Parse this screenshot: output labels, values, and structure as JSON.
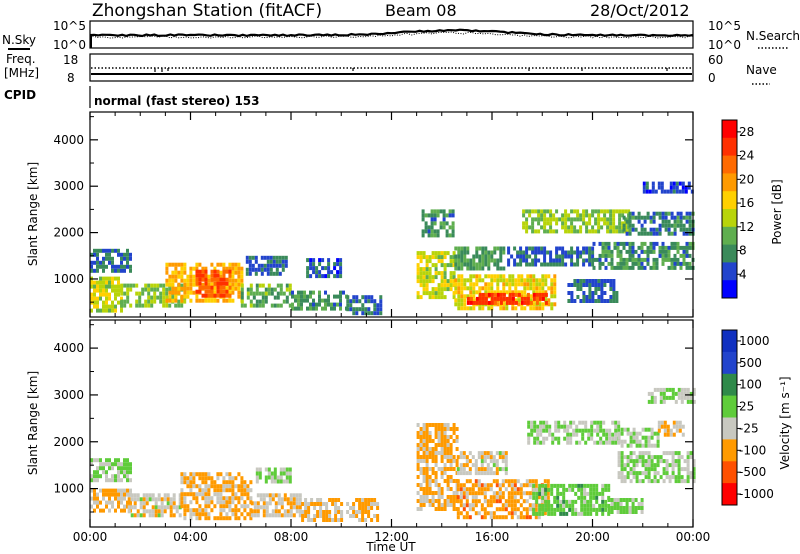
{
  "header": {
    "station": "Zhongshan Station (fitACF)",
    "beam": "Beam 08",
    "date": "28/Oct/2012"
  },
  "top_panels": {
    "nsky_label": "N.Sky",
    "nsky_ticks": [
      "10^5",
      "10^0"
    ],
    "nsearch_label": "N.Search",
    "nsearch_ticks": [
      "10^5",
      "10^0"
    ],
    "freq_label_1": "Freq.",
    "freq_label_2": "[MHz]",
    "freq_ticks": [
      "18",
      "8"
    ],
    "nave_label": "Nave",
    "nave_ticks": [
      "60",
      "0"
    ],
    "cpid_label": "CPID",
    "cpid_text": "normal (fast stereo) 153"
  },
  "chart_data": [
    {
      "type": "heatmap",
      "title": "",
      "xlabel": "",
      "ylabel": "Slant Range [km]",
      "xlim": [
        0,
        24
      ],
      "ylim": [
        180,
        4600
      ],
      "yticks": [
        "1000",
        "2000",
        "3000",
        "4000"
      ],
      "colorbar": {
        "label": "Power [dB]",
        "ticks": [
          "4",
          "8",
          "12",
          "16",
          "20",
          "24",
          "28"
        ],
        "range": [
          0,
          30
        ],
        "colors": [
          "#0000ff",
          "#2244cc",
          "#3a8a5a",
          "#5fae4f",
          "#b8d40a",
          "#ffd000",
          "#ff9a00",
          "#ff6a00",
          "#ff3000",
          "#ff0000"
        ]
      },
      "regions": [
        {
          "t0": 0.0,
          "t1": 1.2,
          "r0": 350,
          "r1": 1050,
          "v": 14
        },
        {
          "t0": 0.0,
          "t1": 1.6,
          "r0": 1150,
          "r1": 1650,
          "v": 6
        },
        {
          "t0": 1.2,
          "t1": 3.8,
          "r0": 400,
          "r1": 900,
          "v": 12
        },
        {
          "t0": 3.0,
          "t1": 6.0,
          "r0": 500,
          "r1": 1350,
          "v": 18
        },
        {
          "t0": 4.2,
          "t1": 5.6,
          "r0": 600,
          "r1": 1200,
          "v": 24
        },
        {
          "t0": 6.0,
          "t1": 8.0,
          "r0": 400,
          "r1": 900,
          "v": 10
        },
        {
          "t0": 6.2,
          "t1": 7.8,
          "r0": 1150,
          "r1": 1500,
          "v": 6
        },
        {
          "t0": 8.0,
          "t1": 10.2,
          "r0": 350,
          "r1": 750,
          "v": 8
        },
        {
          "t0": 8.6,
          "t1": 10.0,
          "r0": 1100,
          "r1": 1450,
          "v": 5
        },
        {
          "t0": 10.2,
          "t1": 11.6,
          "r0": 300,
          "r1": 650,
          "v": 6
        },
        {
          "t0": 13.0,
          "t1": 14.5,
          "r0": 600,
          "r1": 1600,
          "v": 14
        },
        {
          "t0": 13.2,
          "t1": 14.4,
          "r0": 1900,
          "r1": 2500,
          "v": 8
        },
        {
          "t0": 14.5,
          "t1": 18.5,
          "r0": 400,
          "r1": 1100,
          "v": 16
        },
        {
          "t0": 15.0,
          "t1": 18.2,
          "r0": 450,
          "r1": 700,
          "v": 26
        },
        {
          "t0": 14.5,
          "t1": 16.5,
          "r0": 1200,
          "r1": 1700,
          "v": 9
        },
        {
          "t0": 16.6,
          "t1": 20.0,
          "r0": 1300,
          "r1": 1700,
          "v": 6
        },
        {
          "t0": 17.2,
          "t1": 21.4,
          "r0": 2000,
          "r1": 2500,
          "v": 12
        },
        {
          "t0": 19.0,
          "t1": 21.0,
          "r0": 500,
          "r1": 1000,
          "v": 6
        },
        {
          "t0": 20.0,
          "t1": 24.0,
          "r0": 1200,
          "r1": 1800,
          "v": 8
        },
        {
          "t0": 21.2,
          "t1": 24.0,
          "r0": 1950,
          "r1": 2450,
          "v": 7
        },
        {
          "t0": 22.0,
          "t1": 24.0,
          "r0": 2900,
          "r1": 3100,
          "v": 4
        }
      ]
    },
    {
      "type": "heatmap",
      "title": "",
      "xlabel": "Time UT",
      "ylabel": "Slant Range [km]",
      "xlim": [
        0,
        24
      ],
      "ylim": [
        180,
        4600
      ],
      "xticks": [
        "00:00",
        "04:00",
        "08:00",
        "12:00",
        "16:00",
        "20:00",
        "00:00"
      ],
      "yticks": [
        "1000",
        "2000",
        "3000",
        "4000"
      ],
      "colorbar": {
        "label": "Velocity [m s⁻¹]",
        "ticks": [
          "1000",
          "500",
          "100",
          "25",
          "-25",
          "-100",
          "-500",
          "-1000"
        ],
        "range": [
          -1000,
          1000
        ],
        "colors": [
          "#ff0000",
          "#ff5000",
          "#ff9a00",
          "#c8c8c0",
          "#5fcc3a",
          "#2f8a4a",
          "#2244cc",
          "#1030c0"
        ]
      },
      "regions": [
        {
          "t0": 0.0,
          "t1": 1.6,
          "r0": 500,
          "r1": 1000,
          "v": -300
        },
        {
          "t0": 0.0,
          "t1": 1.6,
          "r0": 1200,
          "r1": 1650,
          "v": 0
        },
        {
          "t0": 1.5,
          "t1": 3.6,
          "r0": 450,
          "r1": 900,
          "v": -150
        },
        {
          "t0": 3.6,
          "t1": 6.4,
          "r0": 400,
          "r1": 1350,
          "v": -300
        },
        {
          "t0": 6.4,
          "t1": 8.4,
          "r0": 400,
          "r1": 900,
          "v": -200
        },
        {
          "t0": 6.6,
          "t1": 8.0,
          "r0": 1150,
          "r1": 1450,
          "v": 0
        },
        {
          "t0": 8.4,
          "t1": 11.4,
          "r0": 350,
          "r1": 800,
          "v": -300
        },
        {
          "t0": 13.0,
          "t1": 14.6,
          "r0": 600,
          "r1": 2400,
          "v": -300
        },
        {
          "t0": 14.6,
          "t1": 18.2,
          "r0": 400,
          "r1": 1200,
          "v": -350
        },
        {
          "t0": 14.6,
          "t1": 16.6,
          "r0": 1300,
          "r1": 1800,
          "v": -150
        },
        {
          "t0": 17.6,
          "t1": 20.6,
          "r0": 450,
          "r1": 1100,
          "v": 120
        },
        {
          "t0": 17.4,
          "t1": 21.0,
          "r0": 2000,
          "r1": 2450,
          "v": 0
        },
        {
          "t0": 20.6,
          "t1": 22.0,
          "r0": 500,
          "r1": 800,
          "v": 60
        },
        {
          "t0": 21.0,
          "t1": 24.0,
          "r0": 1200,
          "r1": 1800,
          "v": 0
        },
        {
          "t0": 21.0,
          "t1": 22.6,
          "r0": 1900,
          "r1": 2300,
          "v": 0
        },
        {
          "t0": 22.6,
          "t1": 23.6,
          "r0": 2150,
          "r1": 2450,
          "v": -300
        },
        {
          "t0": 22.2,
          "t1": 24.0,
          "r0": 2850,
          "r1": 3150,
          "v": 0
        }
      ]
    }
  ]
}
